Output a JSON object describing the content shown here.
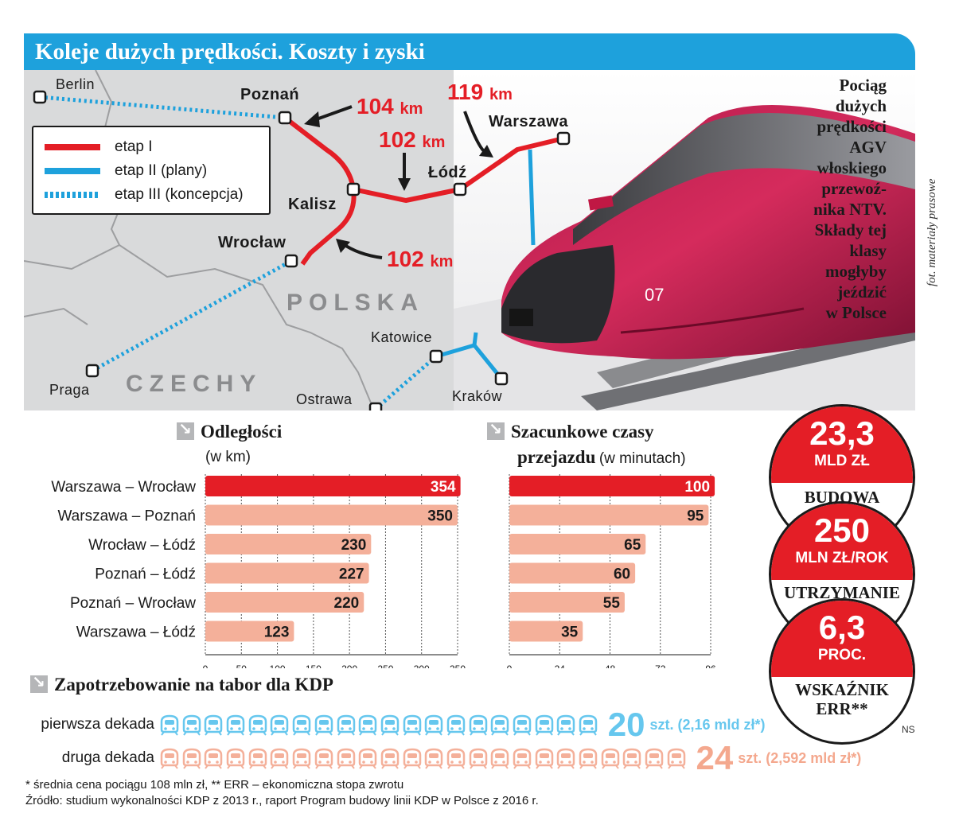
{
  "title": "Koleje dużych prędkości. Koszty i zyski",
  "map": {
    "legend": [
      {
        "label": "etap I",
        "color": "#e41e26",
        "style": "solid"
      },
      {
        "label": "etap II (plany)",
        "color": "#1ea1dc",
        "style": "solid"
      },
      {
        "label": "etap III (koncepcja)",
        "color": "#1ea1dc",
        "style": "dotted"
      }
    ],
    "cities": {
      "berlin": "Berlin",
      "poznan": "Poznań",
      "warszawa": "Warszawa",
      "lodz": "Łódź",
      "kalisz": "Kalisz",
      "wroclaw": "Wrocław",
      "praga": "Praga",
      "katowice": "Katowice",
      "ostrawa": "Ostrawa",
      "krakow": "Kraków"
    },
    "countries": {
      "polska": "POLSKA",
      "czechy": "CZECHY"
    },
    "segments": [
      {
        "value": "104",
        "unit": "km"
      },
      {
        "value": "119",
        "unit": "km"
      },
      {
        "value": "102",
        "unit": "km"
      },
      {
        "value": "102",
        "unit": "km"
      }
    ],
    "train_caption": "Pociąg\ndużych\nprędkości\nAGV\nwłoskiego\nprzewoź-\nnika NTV.\nSkłady tej\nklasy\nmogłyby\njeździć\nw Polsce",
    "train_number": "07",
    "photo_credit": "fot. materiały prasowe"
  },
  "distances": {
    "title": "Odległości",
    "subtitle": "(w km)"
  },
  "times": {
    "title": "Szacunkowe czasy",
    "title2": "przejazdu",
    "subtitle": "(w minutach)"
  },
  "chart_data": [
    {
      "type": "bar",
      "title": "Odległości",
      "subtitle": "(w km)",
      "categories": [
        "Warszawa – Wrocław",
        "Warszawa – Poznań",
        "Wrocław – Łódź",
        "Poznań – Łódź",
        "Poznań – Wrocław",
        "Warszawa – Łódź"
      ],
      "values": [
        354,
        350,
        230,
        227,
        220,
        123
      ],
      "xlim": [
        0,
        350
      ],
      "ticks": [
        0,
        50,
        100,
        150,
        200,
        250,
        300,
        350
      ],
      "highlight_color": "#e41e26",
      "bar_color": "#f4b09a"
    },
    {
      "type": "bar",
      "title": "Szacunkowe czasy przejazdu",
      "subtitle": "(w minutach)",
      "categories": [
        "Warszawa – Wrocław",
        "Warszawa – Poznań",
        "Wrocław – Łódź",
        "Poznań – Łódź",
        "Poznań – Wrocław",
        "Warszawa – Łódź"
      ],
      "values": [
        100,
        95,
        65,
        60,
        55,
        35
      ],
      "xlim": [
        0,
        96
      ],
      "ticks": [
        0,
        24,
        48,
        72,
        96
      ],
      "highlight_color": "#e41e26",
      "bar_color": "#f4b09a"
    }
  ],
  "stats": [
    {
      "value": "23,3",
      "unit": "mld zł",
      "label": "budowa"
    },
    {
      "value": "250",
      "unit": "mln zł/rok",
      "label": "utrzymanie"
    },
    {
      "value": "6,3",
      "unit": "proc.",
      "label": "wskaźnik",
      "label2": "ERR**"
    }
  ],
  "tabor": {
    "title": "Zapotrzebowanie na tabor dla KDP",
    "rows": [
      {
        "label": "pierwsza dekada",
        "count": 20,
        "count_text": "20",
        "detail": "szt. (2,16 mld zł*)",
        "color": "#66c7ee"
      },
      {
        "label": "druga dekada",
        "count": 24,
        "count_text": "24",
        "detail": "szt. (2,592 mld zł*)",
        "color": "#f4b09a"
      }
    ]
  },
  "footnote1": "* średnia cena pociągu 108 mln zł, ** ERR – ekonomiczna stopa zwrotu",
  "footnote2": "Źródło: studium wykonalności KDP z 2013 r., raport Program budowy linii KDP w Polsce z 2016 r.",
  "signature": "NS"
}
